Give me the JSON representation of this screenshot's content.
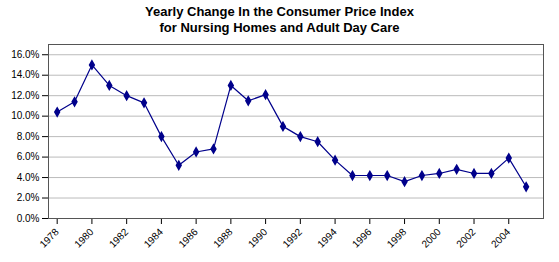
{
  "chart_data": {
    "type": "line",
    "title": "Yearly Change In the Consumer Price Index\nfor Nursing Homes and Adult Day Care",
    "x": [
      1978,
      1979,
      1980,
      1981,
      1982,
      1983,
      1984,
      1985,
      1986,
      1987,
      1988,
      1989,
      1990,
      1991,
      1992,
      1993,
      1994,
      1995,
      1996,
      1997,
      1998,
      1999,
      2000,
      2001,
      2002,
      2003,
      2004,
      2005
    ],
    "values": [
      0.104,
      0.114,
      0.15,
      0.13,
      0.12,
      0.113,
      0.08,
      0.052,
      0.065,
      0.068,
      0.13,
      0.115,
      0.121,
      0.09,
      0.08,
      0.075,
      0.057,
      0.042,
      0.042,
      0.042,
      0.036,
      0.042,
      0.044,
      0.048,
      0.044,
      0.044,
      0.059,
      0.031
    ],
    "color": "#00008B",
    "marker": "diamond",
    "xlim": [
      1977.5,
      2006.0
    ],
    "xticks": [
      1978,
      1980,
      1982,
      1984,
      1986,
      1988,
      1990,
      1992,
      1994,
      1996,
      1998,
      2000,
      2002,
      2004
    ],
    "ylim": [
      0.0,
      0.17
    ],
    "yticks": [
      {
        "value": 0.0,
        "label": "0.0%"
      },
      {
        "value": 0.02,
        "label": "2.0%"
      },
      {
        "value": 0.04,
        "label": "4.0%"
      },
      {
        "value": 0.06,
        "label": "6.0%"
      },
      {
        "value": 0.08,
        "label": "8.0%"
      },
      {
        "value": 0.1,
        "label": "10.0%"
      },
      {
        "value": 0.12,
        "label": "12.0%"
      },
      {
        "value": 0.14,
        "label": "14.0%"
      },
      {
        "value": 0.16,
        "label": "16.0%"
      }
    ],
    "grid": true
  }
}
